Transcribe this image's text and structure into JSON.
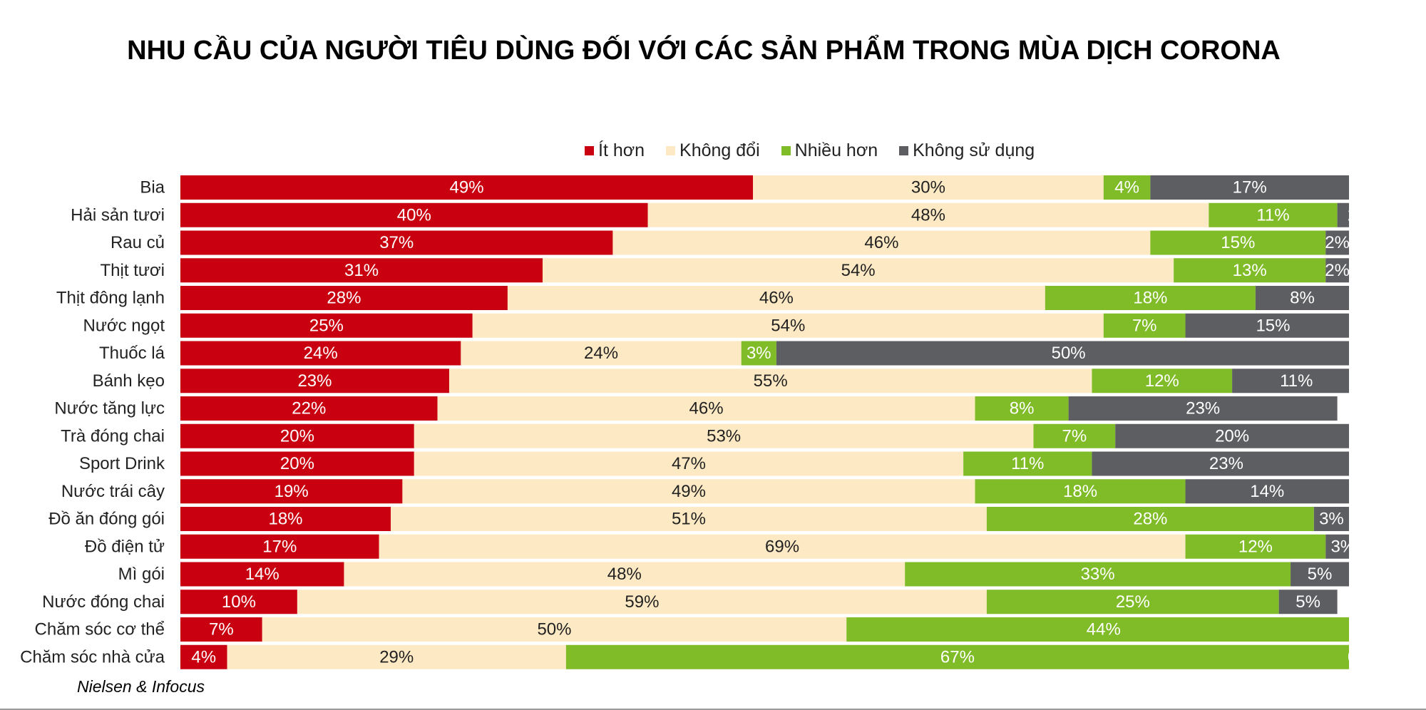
{
  "title": "NHU CẦU CỦA NGƯỜI TIÊU DÙNG ĐỐI VỚI CÁC SẢN PHẨM TRONG MÙA DỊCH CORONA",
  "source": "Nielsen & Infocus",
  "colors": {
    "less": "#c8000f",
    "same": "#fde9c3",
    "more": "#7fbc27",
    "not_used": "#5d5e61",
    "label_light": "#ffffff",
    "label_dark": "#222222"
  },
  "chart_data": {
    "type": "bar",
    "orientation": "horizontal",
    "stacked": true,
    "title": "NHU CẦU CỦA NGƯỜI TIÊU DÙNG ĐỐI VỚI CÁC SẢN PHẨM TRONG MÙA DỊCH CORONA",
    "legend_position": "top",
    "grid": false,
    "xlim": [
      0,
      100
    ],
    "categories": [
      "Bia",
      "Hải sản tươi",
      "Rau củ",
      "Thịt tươi",
      "Thịt đông lạnh",
      "Nước ngọt",
      "Thuốc lá",
      "Bánh kẹo",
      "Nước tăng lực",
      "Trà đóng chai",
      "Sport Drink",
      "Nước trái cây",
      "Đồ ăn đóng gói",
      "Đồ điện tử",
      "Mì gói",
      "Nước đóng chai",
      "Chăm sóc cơ thể",
      "Chăm sóc nhà cửa"
    ],
    "series": [
      {
        "name": "Ít hơn",
        "color": "#c8000f",
        "values": [
          49,
          40,
          37,
          31,
          28,
          25,
          24,
          23,
          22,
          20,
          20,
          19,
          18,
          17,
          14,
          10,
          7,
          4
        ]
      },
      {
        "name": "Không đổi",
        "color": "#fde9c3",
        "values": [
          30,
          48,
          46,
          54,
          46,
          54,
          24,
          55,
          46,
          53,
          47,
          49,
          51,
          69,
          48,
          59,
          50,
          29
        ]
      },
      {
        "name": "Nhiều hơn",
        "color": "#7fbc27",
        "values": [
          4,
          11,
          15,
          13,
          18,
          7,
          3,
          12,
          8,
          7,
          11,
          18,
          28,
          12,
          33,
          25,
          44,
          67
        ]
      },
      {
        "name": "Không sử dụng",
        "color": "#5d5e61",
        "values": [
          17,
          2,
          2,
          2,
          8,
          15,
          50,
          11,
          23,
          20,
          23,
          14,
          3,
          3,
          5,
          5,
          null,
          0
        ]
      }
    ],
    "value_suffix": "%"
  }
}
